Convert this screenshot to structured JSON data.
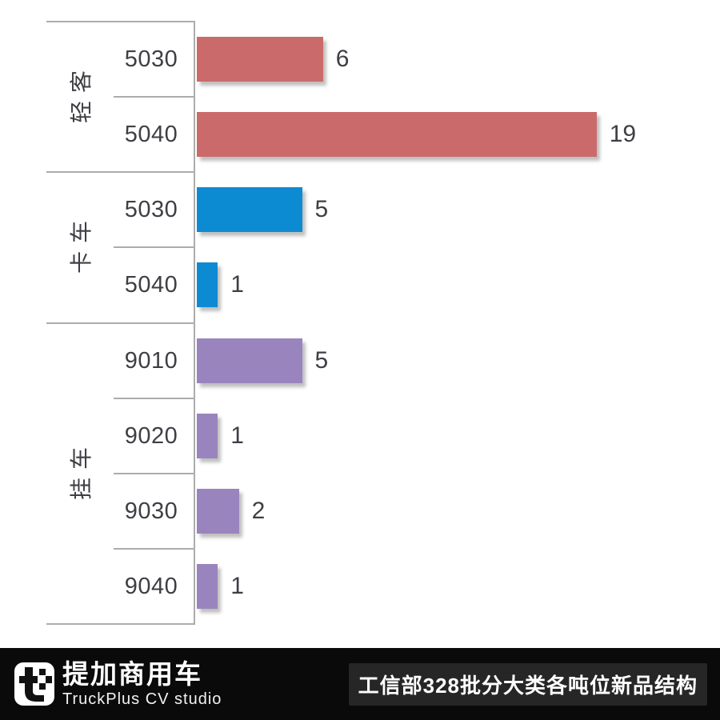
{
  "chart_data": {
    "type": "bar",
    "orientation": "horizontal",
    "title": "工信部328批分大类各吨位新品结构",
    "xlabel": "",
    "ylabel": "",
    "xlim": [
      0,
      19
    ],
    "grid": false,
    "legend": "none",
    "value_labels": "outside-end",
    "groups": [
      {
        "label": "轻客",
        "color": "#CB6A6A",
        "rows": [
          {
            "category": "5030",
            "value": 6
          },
          {
            "category": "5040",
            "value": 19
          }
        ]
      },
      {
        "label": "卡车",
        "color": "#0D8BD2",
        "rows": [
          {
            "category": "5030",
            "value": 5
          },
          {
            "category": "5040",
            "value": 1
          }
        ]
      },
      {
        "label": "挂车",
        "color": "#9A84BD",
        "rows": [
          {
            "category": "9010",
            "value": 5
          },
          {
            "category": "9020",
            "value": 1
          },
          {
            "category": "9030",
            "value": 2
          },
          {
            "category": "9040",
            "value": 1
          }
        ]
      }
    ]
  },
  "footer": {
    "brand_cn": "提加商用车",
    "brand_en": "TruckPlus CV studio",
    "title": "工信部328批分大类各吨位新品结构",
    "background": "#0A0A0A",
    "title_box_color": "#262626",
    "logo": "truckplus-logo"
  }
}
